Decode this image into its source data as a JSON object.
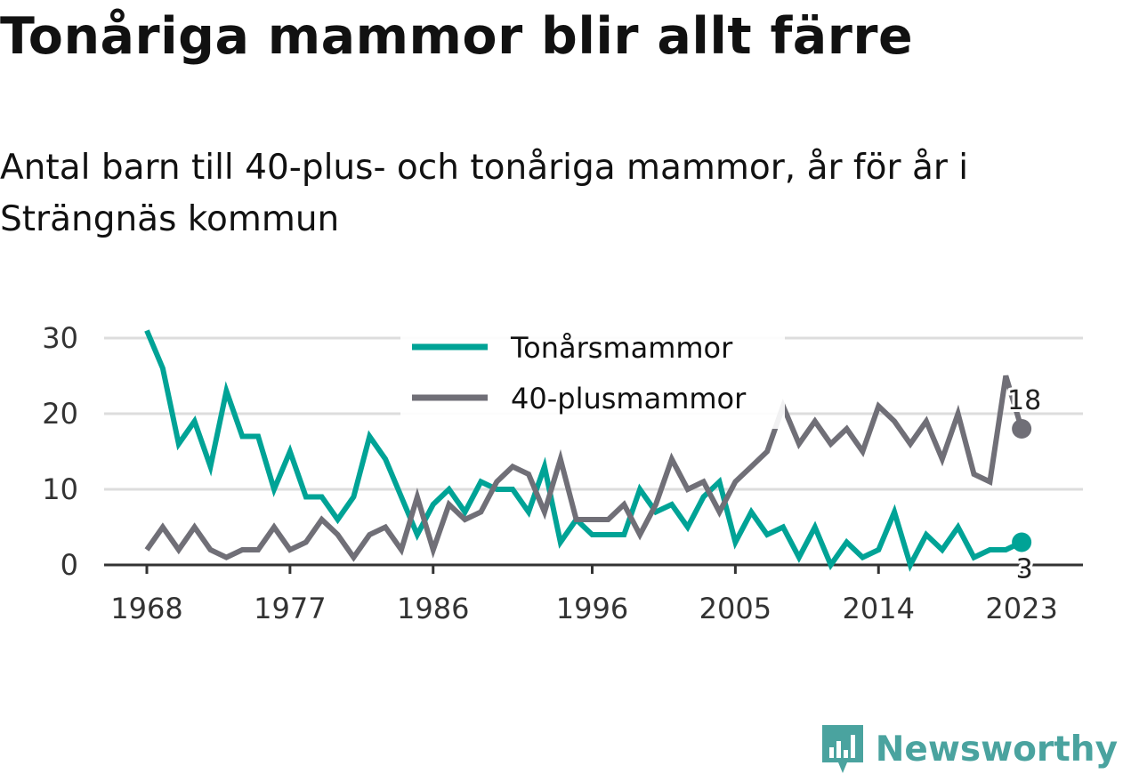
{
  "title": "Tonåriga mammor blir allt färre",
  "subtitle": "Antal barn till 40-plus- och tonåriga mammor, år för år i Strängnäs kommun",
  "brand": {
    "name": "Newsworthy",
    "icon": "newsworthy-logo-icon",
    "color": "#4aa39f"
  },
  "chart_data": {
    "type": "line",
    "x_ticks": [
      "1968",
      "1977",
      "1986",
      "1996",
      "2005",
      "2014",
      "2023"
    ],
    "y_ticks": [
      "0",
      "10",
      "20",
      "30"
    ],
    "ylim": [
      0,
      30
    ],
    "xlim": [
      1968,
      2024
    ],
    "grid": true,
    "legend_position": "top-right",
    "x": [
      1968,
      1969,
      1970,
      1971,
      1972,
      1973,
      1974,
      1975,
      1976,
      1977,
      1978,
      1979,
      1980,
      1981,
      1982,
      1983,
      1984,
      1985,
      1986,
      1987,
      1988,
      1989,
      1990,
      1991,
      1992,
      1993,
      1994,
      1995,
      1996,
      1997,
      1998,
      1999,
      2000,
      2001,
      2002,
      2003,
      2004,
      2005,
      2006,
      2007,
      2008,
      2009,
      2010,
      2011,
      2012,
      2013,
      2014,
      2015,
      2016,
      2017,
      2018,
      2019,
      2020,
      2021,
      2022,
      2023,
      2024
    ],
    "series": [
      {
        "name": "Tonårsmammor",
        "color": "#00a396",
        "end_label": "3",
        "values": [
          31,
          26,
          16,
          19,
          13,
          23,
          17,
          17,
          10,
          15,
          9,
          9,
          6,
          9,
          17,
          14,
          9,
          4,
          8,
          10,
          7,
          11,
          10,
          10,
          7,
          13,
          3,
          6,
          4,
          4,
          4,
          10,
          7,
          8,
          5,
          9,
          11,
          3,
          7,
          4,
          5,
          1,
          5,
          0,
          3,
          1,
          2,
          7,
          0,
          4,
          2,
          5,
          1,
          2,
          2,
          3,
          null
        ]
      },
      {
        "name": "40-plusmammor",
        "color": "#706f77",
        "end_label": "18",
        "values": [
          2,
          5,
          2,
          5,
          2,
          1,
          2,
          2,
          5,
          2,
          3,
          6,
          4,
          1,
          4,
          5,
          2,
          9,
          2,
          8,
          6,
          7,
          11,
          13,
          12,
          7,
          14,
          6,
          6,
          6,
          8,
          4,
          8,
          14,
          10,
          11,
          7,
          11,
          13,
          15,
          21,
          16,
          19,
          16,
          18,
          15,
          21,
          19,
          16,
          19,
          14,
          20,
          12,
          11,
          25,
          18,
          null
        ]
      }
    ]
  }
}
